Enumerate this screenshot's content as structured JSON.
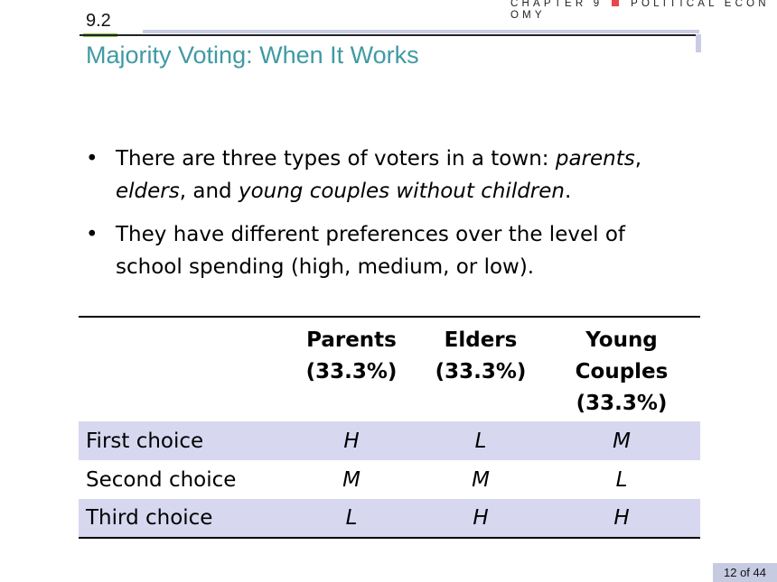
{
  "header": {
    "chapter_label": "CHAPTER 9",
    "chapter_title": "POLITICAL ECONOMY",
    "section_number": "9.2",
    "slide_title": "Majority Voting: When It Works",
    "accent_color": "#3f9aa3"
  },
  "bullets": [
    {
      "parts": [
        {
          "t": "There are three types of voters in a town: ",
          "i": false
        },
        {
          "t": "parents",
          "i": true
        },
        {
          "t": ", ",
          "i": false
        },
        {
          "t": "elders",
          "i": true
        },
        {
          "t": ", and ",
          "i": false
        },
        {
          "t": "young couples without children",
          "i": true
        },
        {
          "t": ".",
          "i": false
        }
      ]
    },
    {
      "parts": [
        {
          "t": "They have different preferences over the level of school spending (high, medium, or low).",
          "i": false
        }
      ]
    }
  ],
  "table": {
    "columns": [
      {
        "name": "Parents",
        "share": "(33.3%)"
      },
      {
        "name": "Elders",
        "share": "(33.3%)"
      },
      {
        "name": "Young Couples",
        "share": "(33.3%)"
      }
    ],
    "rows": [
      {
        "label": "First choice",
        "values": [
          "H",
          "L",
          "M"
        ]
      },
      {
        "label": "Second choice",
        "values": [
          "M",
          "M",
          "L"
        ]
      },
      {
        "label": "Third choice",
        "values": [
          "L",
          "H",
          "H"
        ]
      }
    ],
    "shade_color": "#d7d7f0"
  },
  "footer": {
    "page_indicator": "12 of 44"
  }
}
